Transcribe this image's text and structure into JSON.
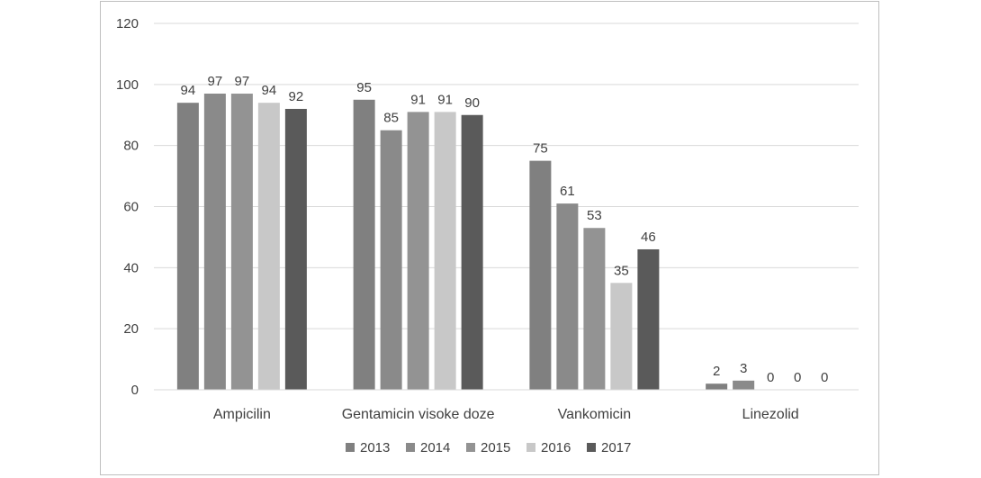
{
  "chart_data": {
    "type": "bar",
    "categories": [
      "Ampicilin",
      "Gentamicin visoke doze",
      "Vankomicin",
      "Linezolid"
    ],
    "series": [
      {
        "name": "2013",
        "values": [
          94,
          95,
          75,
          2
        ],
        "color": "#808080"
      },
      {
        "name": "2014",
        "values": [
          97,
          85,
          61,
          3
        ],
        "color": "#8a8a8a"
      },
      {
        "name": "2015",
        "values": [
          97,
          91,
          53,
          0
        ],
        "color": "#939393"
      },
      {
        "name": "2016",
        "values": [
          94,
          91,
          35,
          0
        ],
        "color": "#c8c8c8"
      },
      {
        "name": "2017",
        "values": [
          92,
          90,
          46,
          0
        ],
        "color": "#5a5a5a"
      }
    ],
    "title": "",
    "xlabel": "",
    "ylabel": "",
    "ylim": [
      0,
      120
    ],
    "yticks": [
      0,
      20,
      40,
      60,
      80,
      100,
      120
    ],
    "grid": true,
    "legend_position": "bottom",
    "data_labels": true
  }
}
